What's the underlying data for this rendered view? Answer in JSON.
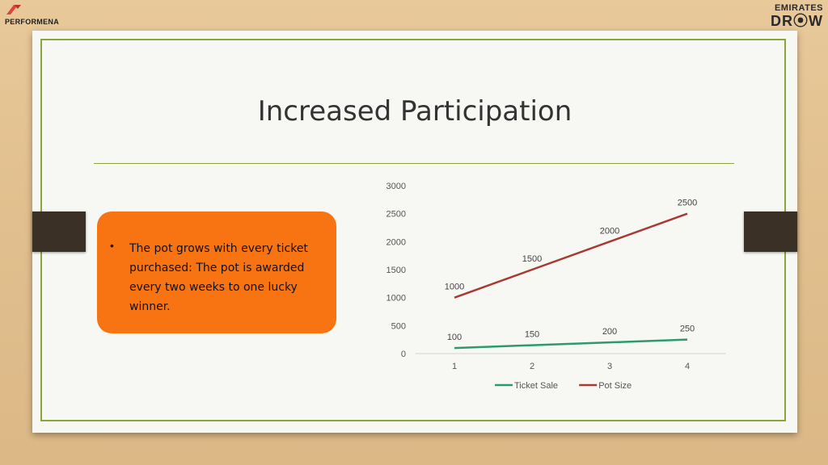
{
  "brand": {
    "left_logo_text": "PERFORMENA",
    "right_logo_line1": "EMIRATES",
    "right_logo_line2": "DR⦿W"
  },
  "slide": {
    "title": "Increased Participation",
    "bullet_symbol": "•",
    "bullet_text": "The pot grows with every ticket purchased: The pot is awarded every two weeks to one lucky winner."
  },
  "colors": {
    "accent_green": "#8aa63a",
    "callout_orange": "#f87412",
    "ticket_sale": "#2e9a6b",
    "pot_size": "#a83a32"
  },
  "chart_data": {
    "type": "line",
    "x": [
      1,
      2,
      3,
      4
    ],
    "tick_labels_x": [
      "1",
      "2",
      "3",
      "4"
    ],
    "ylim": [
      0,
      3000
    ],
    "y_ticks": [
      0,
      500,
      1000,
      1500,
      2000,
      2500,
      3000
    ],
    "grid": false,
    "legend": "bottom",
    "series": [
      {
        "name": "Ticket Sale",
        "values": [
          100,
          150,
          200,
          250
        ],
        "color": "#2e9a6b"
      },
      {
        "name": "Pot Size",
        "values": [
          1000,
          1500,
          2000,
          2500
        ],
        "color": "#a83a32"
      }
    ]
  }
}
